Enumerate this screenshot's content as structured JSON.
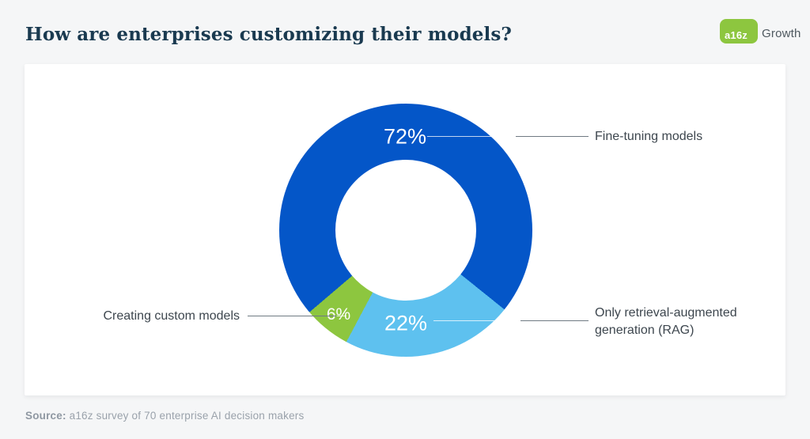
{
  "header": {
    "title": "How are enterprises customizing their models?",
    "logo": {
      "mark_text": "a16z",
      "brand_text": "Growth",
      "mark_color": "#8dc63f"
    }
  },
  "chart_data": {
    "type": "pie",
    "subtype": "donut",
    "title": "How are enterprises customizing their models?",
    "start_angle_deg": 229.6,
    "segments": [
      {
        "label": "Fine-tuning models",
        "value_pct": 72,
        "color": "#0456c8",
        "value_label": "72%"
      },
      {
        "label": "Only retrieval-augmented generation (RAG)",
        "value_pct": 22,
        "color": "#5ec1ef",
        "value_label": "22%"
      },
      {
        "label": "Creating custom models",
        "value_pct": 6,
        "color": "#8dc63f",
        "value_label": "6%"
      }
    ],
    "legend_position": "callout-labels",
    "hole_color": "#ffffff"
  },
  "labels": {
    "pct_72": "72%",
    "pct_22": "22%",
    "pct_6": "6%",
    "fine_tuning": "Fine-tuning models",
    "rag_line1": "Only retrieval-augmented",
    "rag_line2": "generation (RAG)",
    "custom_models": "Creating custom models"
  },
  "footer": {
    "source_label": "Source:",
    "source_text": " a16z survey of 70 enterprise AI decision makers"
  }
}
